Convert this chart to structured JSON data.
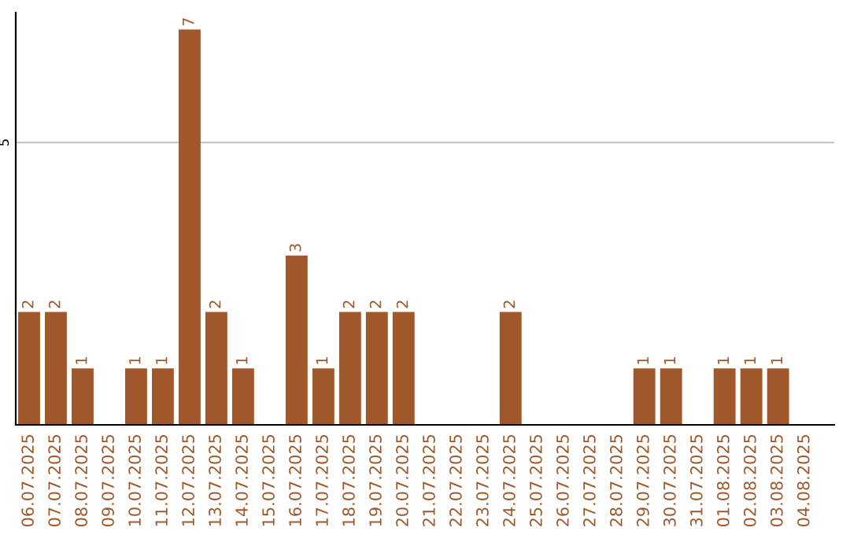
{
  "chart_data": {
    "type": "bar",
    "categories": [
      "06.07.2025",
      "07.07.2025",
      "08.07.2025",
      "09.07.2025",
      "10.07.2025",
      "11.07.2025",
      "12.07.2025",
      "13.07.2025",
      "14.07.2025",
      "15.07.2025",
      "16.07.2025",
      "17.07.2025",
      "18.07.2025",
      "19.07.2025",
      "20.07.2025",
      "21.07.2025",
      "22.07.2025",
      "23.07.2025",
      "24.07.2025",
      "25.07.2025",
      "26.07.2025",
      "27.07.2025",
      "28.07.2025",
      "29.07.2025",
      "30.07.2025",
      "31.07.2025",
      "01.08.2025",
      "02.08.2025",
      "03.08.2025",
      "04.08.2025"
    ],
    "values": [
      2,
      2,
      1,
      0,
      1,
      1,
      7,
      2,
      1,
      0,
      3,
      1,
      2,
      2,
      2,
      0,
      0,
      0,
      2,
      0,
      0,
      0,
      0,
      1,
      1,
      0,
      1,
      1,
      1,
      0
    ],
    "value_labels": [
      "2",
      "2",
      "1",
      null,
      "1",
      "1",
      "7",
      "2",
      "1",
      null,
      "3",
      "1",
      "2",
      "2",
      "2",
      null,
      null,
      null,
      "2",
      null,
      null,
      null,
      null,
      "1",
      "1",
      null,
      "1",
      "1",
      "1",
      null
    ],
    "color": "#a0582a",
    "ylim": [
      0,
      7.3
    ],
    "yticks": [
      5
    ],
    "grid": "y"
  }
}
